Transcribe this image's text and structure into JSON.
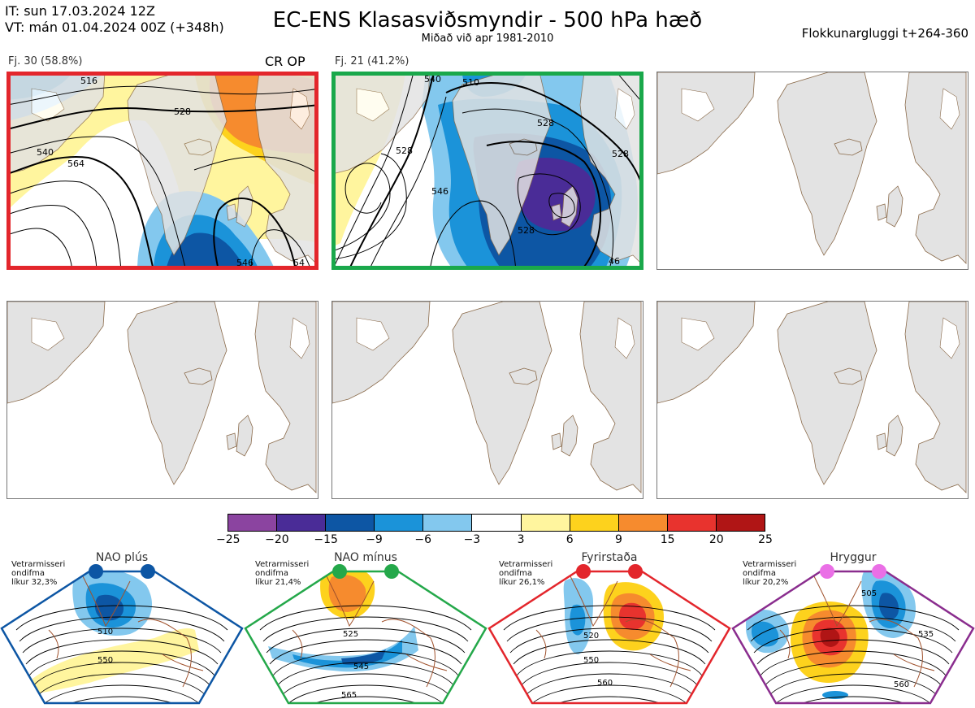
{
  "header": {
    "initial_time": "IT: sun 17.03.2024 12Z",
    "valid_time": "VT: mán 01.04.2024 00Z  (+348h)",
    "title": "EC-ENS Klasasviðsmyndir - 500 hPa hæð",
    "subtitle": "Miðað við apr 1981-2010",
    "window": "Flokkunargluggi t+264-360"
  },
  "clusters": [
    {
      "label": "Fj. 30 (58.8%)",
      "members": 30,
      "percent": 58.8,
      "tag": "CR OP",
      "border_color": "#e3262c",
      "contour_labels": [
        "528",
        "540",
        "564",
        "516",
        "546",
        "54"
      ]
    },
    {
      "label": "Fj. 21 (41.2%)",
      "members": 21,
      "percent": 41.2,
      "tag": "",
      "border_color": "#1aa84b",
      "contour_labels": [
        "540",
        "528",
        "510",
        "528",
        "528",
        "546",
        "528",
        "46"
      ]
    }
  ],
  "colorbar": {
    "ticks": [
      "−25",
      "−20",
      "−15",
      "−9",
      "−6",
      "−3",
      "3",
      "6",
      "9",
      "15",
      "20",
      "25"
    ],
    "colors": [
      "#8b44a0",
      "#4a2c97",
      "#0d56a4",
      "#1b93d9",
      "#83c8ee",
      "#ffffff",
      "#fff59e",
      "#fdd21d",
      "#f68b2e",
      "#e8332e",
      "#b01515"
    ]
  },
  "regimes": [
    {
      "name": "NAO plús",
      "note": [
        "Vetrarmisseri",
        "ondifma",
        "líkur 32,3%"
      ],
      "color": "#0d56a4",
      "labels": [
        "510",
        "550"
      ]
    },
    {
      "name": "NAO mínus",
      "note": [
        "Vetrarmisseri",
        "ondifma",
        "líkur 21,4%"
      ],
      "color": "#24a84a",
      "labels": [
        "525",
        "545",
        "565"
      ]
    },
    {
      "name": "Fyrirstaða",
      "note": [
        "Vetrarmisseri",
        "ondifma",
        "líkur 26,1%"
      ],
      "color": "#e3262c",
      "labels": [
        "520",
        "550",
        "560"
      ]
    },
    {
      "name": "Hryggur",
      "note": [
        "Vetrarmisseri",
        "ondifma",
        "líkur 20,2%"
      ],
      "color": "#8a2d8e",
      "dot_color": "#ea6fe6",
      "labels": [
        "505",
        "535",
        "560"
      ]
    }
  ]
}
